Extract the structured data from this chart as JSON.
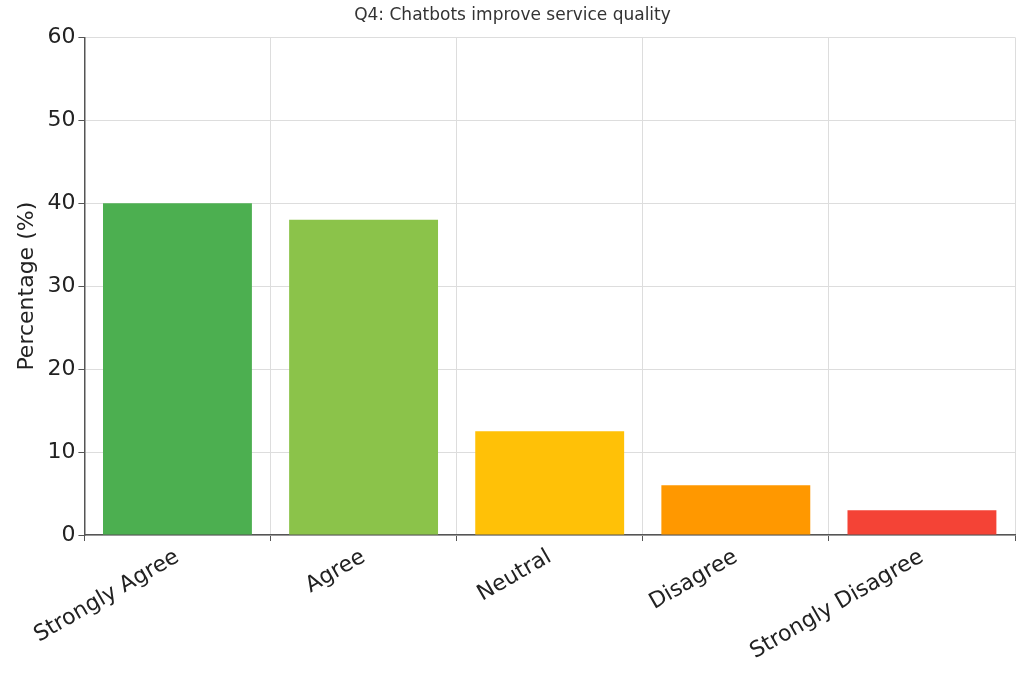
{
  "chart_data": {
    "type": "bar",
    "title": "Q4: Chatbots improve service quality",
    "ylabel": "Percentage (%)",
    "categories": [
      "Strongly Agree",
      "Agree",
      "Neutral",
      "Disagree",
      "Strongly Disagree"
    ],
    "values": [
      40,
      38,
      12.5,
      6,
      3
    ],
    "colors": [
      "#4caf50",
      "#8bc34a",
      "#ffc107",
      "#ff9800",
      "#f44336"
    ],
    "ylim": [
      0,
      60
    ],
    "yticks": [
      0,
      10,
      20,
      30,
      40,
      50,
      60
    ],
    "grid": true
  }
}
